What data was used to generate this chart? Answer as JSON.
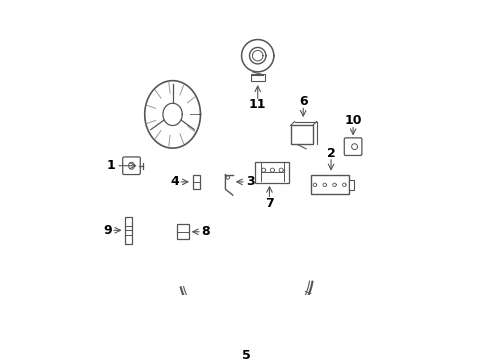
{
  "background_color": "#ffffff",
  "figsize": [
    4.89,
    3.6
  ],
  "dpi": 100,
  "line_color": "#555555",
  "text_color": "#000000",
  "font_size": 9
}
